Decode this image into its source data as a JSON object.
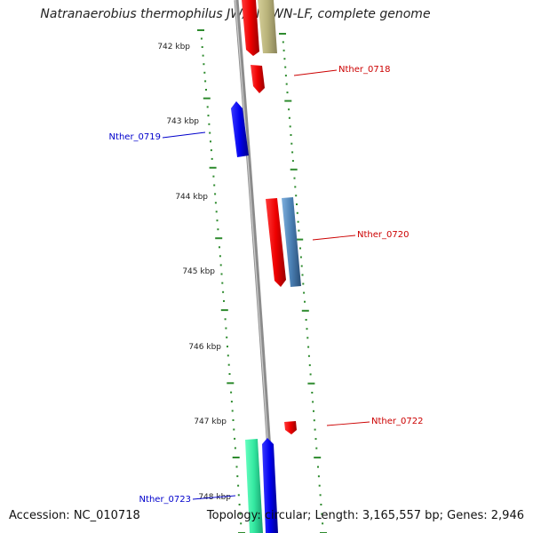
{
  "title": "Natranaerobius thermophilus JW/NM-WN-LF, complete genome",
  "ticks": [
    {
      "label": "742 kbp"
    },
    {
      "label": "743 kbp"
    },
    {
      "label": "744 kbp"
    },
    {
      "label": "745 kbp"
    },
    {
      "label": "746 kbp"
    },
    {
      "label": "747 kbp"
    },
    {
      "label": "748 kbp"
    }
  ],
  "genes": [
    {
      "name": "Nther_0718",
      "color": "#cc0000"
    },
    {
      "name": "Nther_0719",
      "color": "#0000cc"
    },
    {
      "name": "Nther_0720",
      "color": "#cc0000"
    },
    {
      "name": "Nther_0722",
      "color": "#cc0000"
    },
    {
      "name": "Nther_0723",
      "color": "#0000cc"
    }
  ],
  "colors": {
    "backbone": "#8c8c8c",
    "tick": "#2e8b2e",
    "red_feature": "#ee0000",
    "blue_feature": "#0000ee",
    "steel_feature": "#4a7fb3",
    "khaki_feature": "#b8b27a",
    "green_feature": "#33e8a0"
  },
  "footer": {
    "accession": "Accession: NC_010718",
    "summary": "Topology: circular; Length: 3,165,557 bp; Genes: 2,946"
  }
}
